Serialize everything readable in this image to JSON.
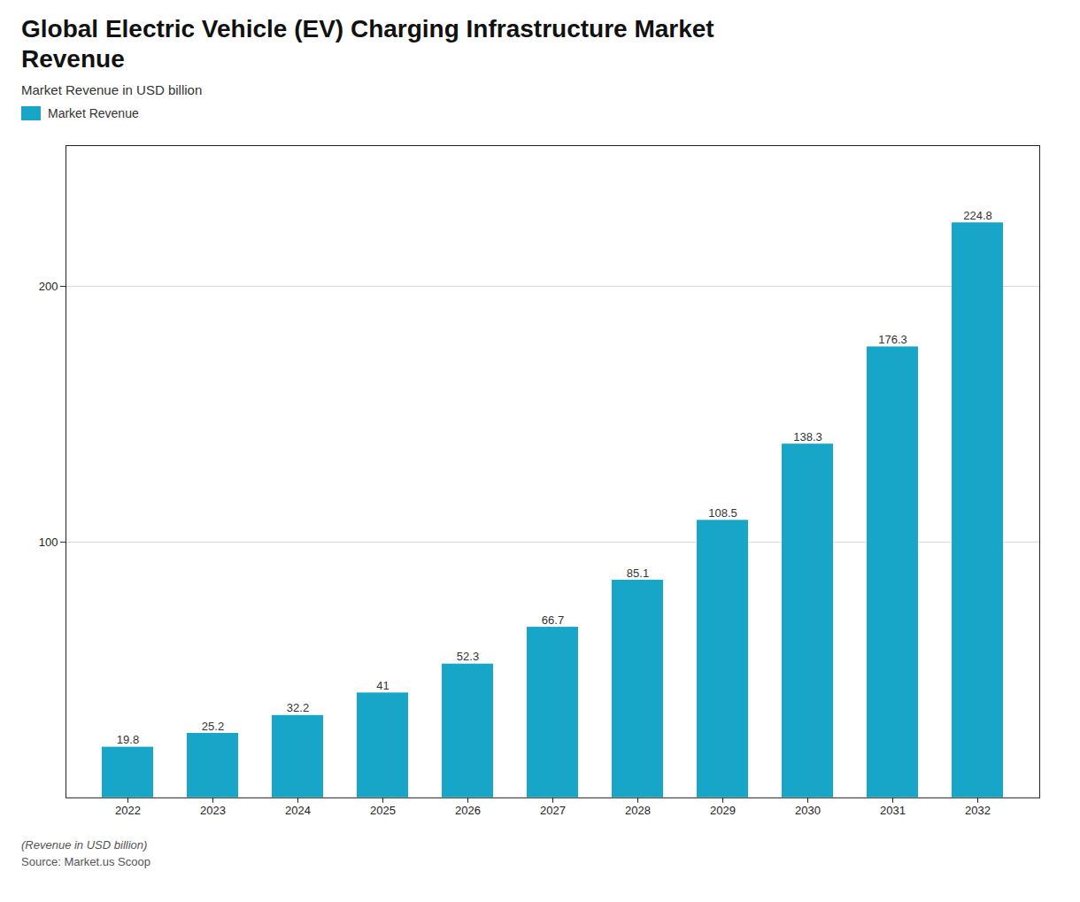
{
  "chart_data": {
    "type": "bar",
    "title": "Global Electric Vehicle (EV) Charging Infrastructure Market\nRevenue",
    "subtitle": "Market Revenue in USD billion",
    "footnote": "(Revenue in USD billion)",
    "source": "Source: Market.us Scoop",
    "categories": [
      "2022",
      "2023",
      "2024",
      "2025",
      "2026",
      "2027",
      "2028",
      "2029",
      "2030",
      "2031",
      "2032"
    ],
    "series": [
      {
        "name": "Market Revenue",
        "color": "#18A6C8",
        "values": [
          19.8,
          25.2,
          32.2,
          41.0,
          52.3,
          66.7,
          85.1,
          108.5,
          138.3,
          176.3,
          224.8
        ]
      }
    ],
    "ylim": [
      0,
      255
    ],
    "yticks": [
      100,
      200
    ],
    "grid": true,
    "legend": "top left",
    "data_labels": true
  }
}
